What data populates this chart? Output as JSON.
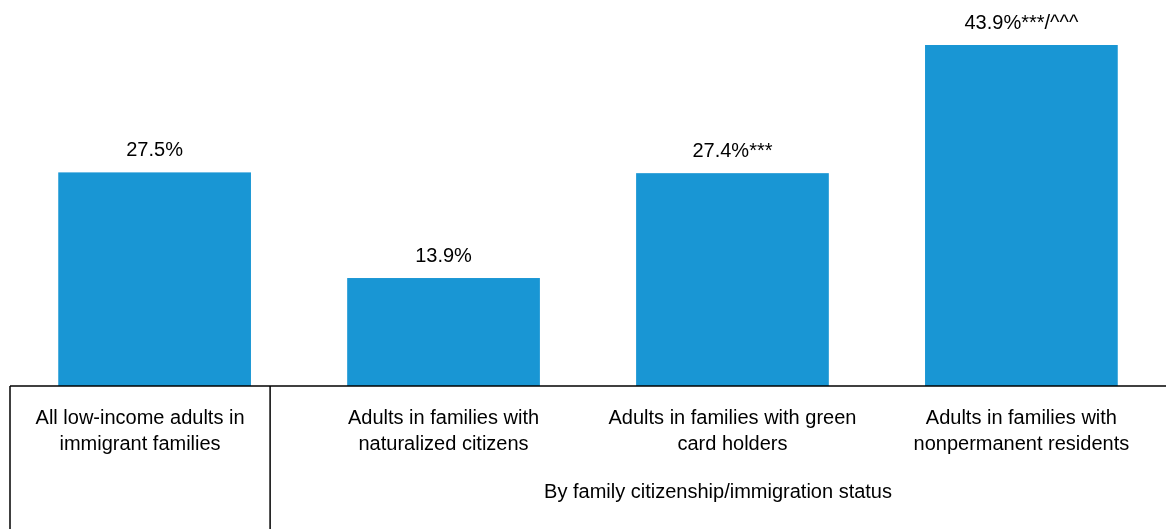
{
  "chart_data": {
    "type": "bar",
    "categories": [
      "All low-income adults in immigrant families",
      "Adults in families with naturalized citizens",
      "Adults in families with green card holders",
      "Adults in families with nonpermanent residents"
    ],
    "values": [
      27.5,
      13.9,
      27.4,
      43.9
    ],
    "value_labels": [
      "27.5%",
      "13.9%",
      "27.4%***",
      "43.9%***/^^^"
    ],
    "color": "#1996d4",
    "annotations": [
      "By family citizenship/immigration status"
    ]
  }
}
